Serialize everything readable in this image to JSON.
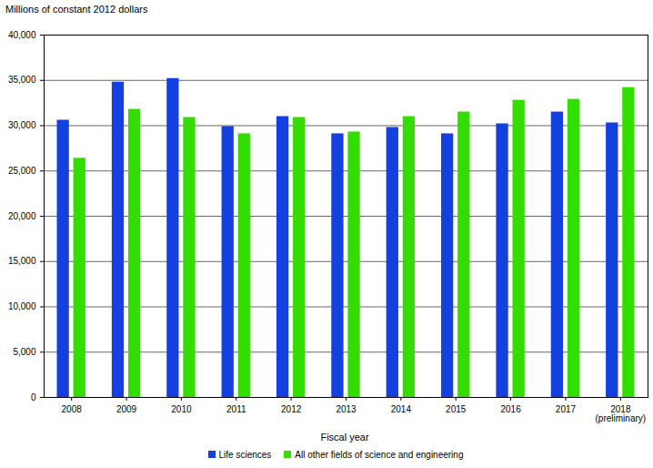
{
  "chart_data": {
    "type": "bar",
    "y_label": "Millions of constant 2012 dollars",
    "x_label": "Fiscal year",
    "categories": [
      "2008",
      "2009",
      "2010",
      "2011",
      "2012",
      "2013",
      "2014",
      "2015",
      "2016",
      "2017",
      "2018\n(preliminary)"
    ],
    "series": [
      {
        "name": "Life sciences",
        "color": "#1440e0",
        "values": [
          30600,
          34800,
          35200,
          29900,
          31000,
          29100,
          29800,
          29100,
          30200,
          31500,
          30300
        ]
      },
      {
        "name": "All other fields of science and engineering",
        "color": "#33dd00",
        "values": [
          26400,
          31800,
          30900,
          29100,
          30900,
          29300,
          31000,
          31500,
          32800,
          32900,
          34200
        ]
      }
    ],
    "ylim": [
      0,
      40000
    ],
    "yticks": [
      0,
      {
        "value": 5000,
        "label": "5,000"
      },
      {
        "value": 10000,
        "label": "10,000"
      },
      {
        "value": 15000,
        "label": "15,000"
      },
      {
        "value": 20000,
        "label": "20,000"
      },
      {
        "value": 25000,
        "label": "25,000"
      },
      {
        "value": 30000,
        "label": "30,000"
      },
      {
        "value": 35000,
        "label": "35,000"
      },
      {
        "value": 40000,
        "label": "40,000"
      }
    ],
    "grid": true,
    "legend": "bottom"
  }
}
